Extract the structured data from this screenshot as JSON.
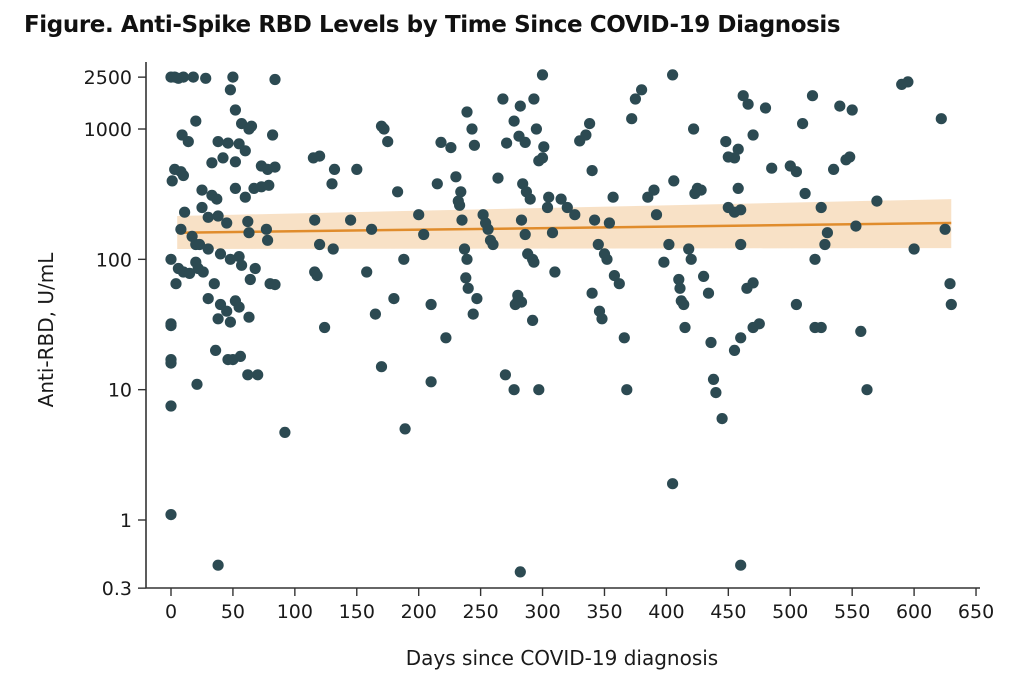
{
  "figure_title": "Figure.  Anti-Spike RBD Levels by Time Since COVID-19 Diagnosis",
  "colors": {
    "point": "#2c4a52",
    "trend": "#e08c2c",
    "band": "#f7dcbc",
    "axis": "#333333"
  },
  "chart_data": {
    "type": "scatter",
    "title": "Anti-Spike RBD Levels by Time Since COVID-19 Diagnosis",
    "xlabel": "Days since COVID-19 diagnosis",
    "ylabel": "Anti-RBD, U/mL",
    "xlim": [
      -20,
      650
    ],
    "ylim": [
      0.3,
      2500
    ],
    "yscale": "log",
    "grid": false,
    "xticks": [
      0,
      50,
      100,
      150,
      200,
      250,
      300,
      350,
      400,
      450,
      500,
      550,
      600,
      650
    ],
    "yticks": [
      0.3,
      1,
      10,
      100,
      1000,
      2500
    ],
    "ytick_labels": [
      "0.3",
      "1",
      "10",
      "100",
      "1000",
      "2500"
    ],
    "trend": {
      "x": [
        5,
        630
      ],
      "y": [
        160,
        190
      ],
      "ci_lower": [
        120,
        122
      ],
      "ci_upper": [
        215,
        290
      ]
    },
    "points": [
      [
        0,
        2500
      ],
      [
        3,
        2500
      ],
      [
        6,
        2450
      ],
      [
        10,
        2500
      ],
      [
        18,
        2500
      ],
      [
        28,
        2450
      ],
      [
        50,
        2500
      ],
      [
        84,
        2400
      ],
      [
        48,
        2000
      ],
      [
        52,
        1400
      ],
      [
        65,
        1050
      ],
      [
        20,
        1150
      ],
      [
        57,
        1100
      ],
      [
        63,
        1000
      ],
      [
        9,
        900
      ],
      [
        82,
        900
      ],
      [
        14,
        800
      ],
      [
        38,
        800
      ],
      [
        46,
        780
      ],
      [
        55,
        770
      ],
      [
        60,
        680
      ],
      [
        33,
        550
      ],
      [
        42,
        600
      ],
      [
        52,
        560
      ],
      [
        73,
        520
      ],
      [
        84,
        510
      ],
      [
        3,
        490
      ],
      [
        8,
        470
      ],
      [
        10,
        440
      ],
      [
        1,
        400
      ],
      [
        25,
        340
      ],
      [
        33,
        310
      ],
      [
        52,
        350
      ],
      [
        60,
        300
      ],
      [
        67,
        350
      ],
      [
        73,
        360
      ],
      [
        37,
        290
      ],
      [
        25,
        250
      ],
      [
        11,
        230
      ],
      [
        30,
        210
      ],
      [
        38,
        215
      ],
      [
        45,
        190
      ],
      [
        62,
        195
      ],
      [
        63,
        160
      ],
      [
        8,
        170
      ],
      [
        17,
        150
      ],
      [
        20,
        130
      ],
      [
        23,
        130
      ],
      [
        30,
        120
      ],
      [
        40,
        110
      ],
      [
        48,
        100
      ],
      [
        55,
        105
      ],
      [
        57,
        90
      ],
      [
        64,
        70
      ],
      [
        68,
        85
      ],
      [
        20,
        95
      ],
      [
        0,
        100
      ],
      [
        6,
        85
      ],
      [
        10,
        80
      ],
      [
        15,
        78
      ],
      [
        22,
        85
      ],
      [
        26,
        80
      ],
      [
        4,
        65
      ],
      [
        35,
        65
      ],
      [
        30,
        50
      ],
      [
        40,
        45
      ],
      [
        45,
        40
      ],
      [
        52,
        48
      ],
      [
        55,
        43
      ],
      [
        80,
        65
      ],
      [
        84,
        64
      ],
      [
        63,
        36
      ],
      [
        38,
        35
      ],
      [
        48,
        33
      ],
      [
        0,
        32
      ],
      [
        0,
        31
      ],
      [
        36,
        20
      ],
      [
        46,
        17
      ],
      [
        50,
        17
      ],
      [
        56,
        18
      ],
      [
        62,
        13
      ],
      [
        70,
        13
      ],
      [
        21,
        11
      ],
      [
        0,
        17
      ],
      [
        0,
        16
      ],
      [
        0,
        7.5
      ],
      [
        0,
        1.1
      ],
      [
        38,
        0.45
      ],
      [
        92,
        4.7
      ],
      [
        78,
        490
      ],
      [
        79,
        370
      ],
      [
        77,
        170
      ],
      [
        78,
        140
      ],
      [
        115,
        600
      ],
      [
        120,
        620
      ],
      [
        130,
        380
      ],
      [
        132,
        490
      ],
      [
        116,
        200
      ],
      [
        120,
        130
      ],
      [
        131,
        120
      ],
      [
        116,
        80
      ],
      [
        118,
        75
      ],
      [
        124,
        30
      ],
      [
        150,
        490
      ],
      [
        145,
        200
      ],
      [
        162,
        170
      ],
      [
        158,
        80
      ],
      [
        170,
        1050
      ],
      [
        172,
        1000
      ],
      [
        175,
        800
      ],
      [
        183,
        330
      ],
      [
        180,
        50
      ],
      [
        165,
        38
      ],
      [
        170,
        15
      ],
      [
        188,
        100
      ],
      [
        189,
        5
      ],
      [
        200,
        220
      ],
      [
        204,
        155
      ],
      [
        210,
        45
      ],
      [
        210,
        11.5
      ],
      [
        215,
        380
      ],
      [
        218,
        790
      ],
      [
        222,
        25
      ],
      [
        226,
        720
      ],
      [
        230,
        430
      ],
      [
        232,
        280
      ],
      [
        233,
        260
      ],
      [
        234,
        330
      ],
      [
        235,
        200
      ],
      [
        237,
        120
      ],
      [
        238,
        72
      ],
      [
        239,
        100
      ],
      [
        240,
        60
      ],
      [
        244,
        38
      ],
      [
        243,
        1000
      ],
      [
        239,
        1350
      ],
      [
        245,
        750
      ],
      [
        247,
        50
      ],
      [
        252,
        220
      ],
      [
        254,
        190
      ],
      [
        256,
        170
      ],
      [
        258,
        140
      ],
      [
        260,
        130
      ],
      [
        264,
        420
      ],
      [
        268,
        1700
      ],
      [
        271,
        780
      ],
      [
        277,
        1150
      ],
      [
        281,
        880
      ],
      [
        286,
        790
      ],
      [
        284,
        380
      ],
      [
        287,
        330
      ],
      [
        290,
        290
      ],
      [
        283,
        200
      ],
      [
        286,
        155
      ],
      [
        288,
        110
      ],
      [
        292,
        100
      ],
      [
        295,
        1000
      ],
      [
        300,
        600
      ],
      [
        297,
        570
      ],
      [
        301,
        730
      ],
      [
        304,
        250
      ],
      [
        308,
        160
      ],
      [
        293,
        1700
      ],
      [
        282,
        1500
      ],
      [
        305,
        300
      ],
      [
        293,
        95
      ],
      [
        292,
        34
      ],
      [
        283,
        47
      ],
      [
        278,
        45
      ],
      [
        280,
        48
      ],
      [
        280,
        53
      ],
      [
        270,
        13
      ],
      [
        277,
        10
      ],
      [
        297,
        10
      ],
      [
        282,
        0.4
      ],
      [
        300,
        2600
      ],
      [
        310,
        80
      ],
      [
        315,
        290
      ],
      [
        320,
        250
      ],
      [
        326,
        220
      ],
      [
        330,
        810
      ],
      [
        335,
        900
      ],
      [
        338,
        1100
      ],
      [
        340,
        480
      ],
      [
        342,
        200
      ],
      [
        345,
        130
      ],
      [
        350,
        110
      ],
      [
        352,
        100
      ],
      [
        354,
        190
      ],
      [
        357,
        300
      ],
      [
        340,
        55
      ],
      [
        346,
        40
      ],
      [
        348,
        35
      ],
      [
        358,
        75
      ],
      [
        362,
        65
      ],
      [
        366,
        25
      ],
      [
        368,
        10
      ],
      [
        372,
        1200
      ],
      [
        375,
        1700
      ],
      [
        380,
        2000
      ],
      [
        385,
        300
      ],
      [
        390,
        340
      ],
      [
        392,
        220
      ],
      [
        398,
        95
      ],
      [
        402,
        130
      ],
      [
        405,
        2600
      ],
      [
        406,
        400
      ],
      [
        410,
        70
      ],
      [
        411,
        60
      ],
      [
        412,
        48
      ],
      [
        414,
        45
      ],
      [
        415,
        30
      ],
      [
        418,
        120
      ],
      [
        420,
        100
      ],
      [
        422,
        1000
      ],
      [
        423,
        320
      ],
      [
        425,
        350
      ],
      [
        428,
        340
      ],
      [
        430,
        74
      ],
      [
        434,
        55
      ],
      [
        436,
        23
      ],
      [
        438,
        12
      ],
      [
        440,
        9.5
      ],
      [
        445,
        6
      ],
      [
        405,
        1.9
      ],
      [
        460,
        0.45
      ],
      [
        448,
        800
      ],
      [
        450,
        610
      ],
      [
        455,
        600
      ],
      [
        458,
        700
      ],
      [
        462,
        1800
      ],
      [
        466,
        1550
      ],
      [
        470,
        900
      ],
      [
        480,
        1450
      ],
      [
        485,
        500
      ],
      [
        450,
        250
      ],
      [
        455,
        230
      ],
      [
        458,
        350
      ],
      [
        460,
        240
      ],
      [
        460,
        130
      ],
      [
        465,
        60
      ],
      [
        470,
        30
      ],
      [
        475,
        32
      ],
      [
        460,
        25
      ],
      [
        455,
        20
      ],
      [
        470,
        66
      ],
      [
        500,
        520
      ],
      [
        505,
        470
      ],
      [
        510,
        1100
      ],
      [
        512,
        320
      ],
      [
        518,
        1800
      ],
      [
        520,
        100
      ],
      [
        525,
        250
      ],
      [
        528,
        130
      ],
      [
        530,
        160
      ],
      [
        535,
        490
      ],
      [
        540,
        1500
      ],
      [
        545,
        580
      ],
      [
        548,
        610
      ],
      [
        550,
        1400
      ],
      [
        553,
        180
      ],
      [
        557,
        28
      ],
      [
        562,
        10
      ],
      [
        570,
        280
      ],
      [
        590,
        2200
      ],
      [
        595,
        2300
      ],
      [
        600,
        120
      ],
      [
        622,
        1200
      ],
      [
        625,
        170
      ],
      [
        629,
        65
      ],
      [
        630,
        45
      ],
      [
        505,
        45
      ],
      [
        520,
        30
      ],
      [
        525,
        30
      ]
    ]
  }
}
